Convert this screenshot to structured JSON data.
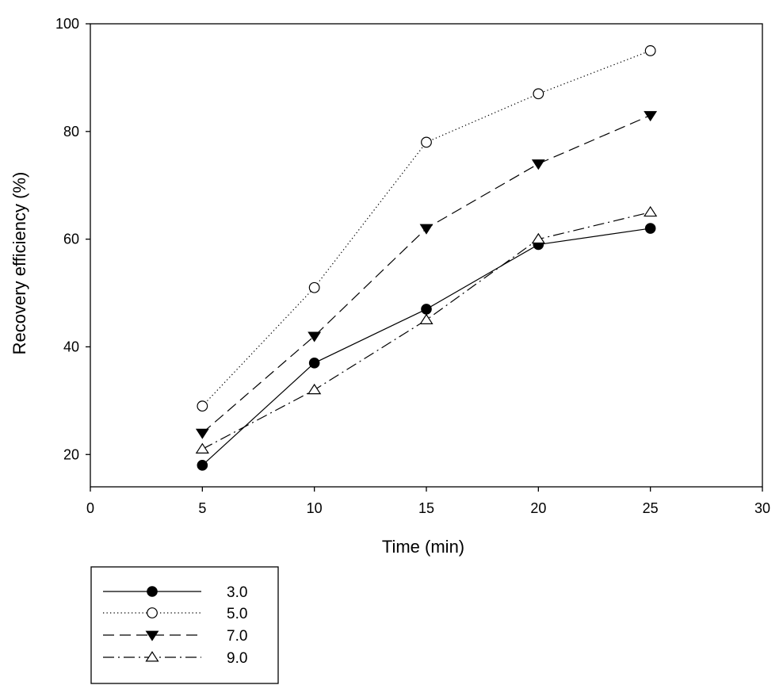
{
  "chart_data": {
    "type": "line",
    "title": "",
    "xlabel": "Time (min)",
    "ylabel": "Recovery efficiency (%)",
    "xlim": [
      0,
      30
    ],
    "ylim": [
      14,
      100
    ],
    "xticks": [
      0,
      5,
      10,
      15,
      20,
      25,
      30
    ],
    "yticks": [
      20,
      40,
      60,
      80,
      100
    ],
    "x_tick_labels": [
      "0",
      "5",
      "10",
      "15",
      "20",
      "25",
      "30"
    ],
    "y_tick_labels": [
      "20",
      "40",
      "60",
      "80",
      "100"
    ],
    "grid": false,
    "legend_position": "below-left",
    "x": [
      5,
      10,
      15,
      20,
      25
    ],
    "series": [
      {
        "name": "3.0",
        "values": [
          18,
          37,
          47,
          59,
          62
        ],
        "marker": "filled-circle",
        "line": "solid"
      },
      {
        "name": "5.0",
        "values": [
          29,
          51,
          78,
          87,
          95
        ],
        "marker": "open-circle",
        "line": "dotted"
      },
      {
        "name": "7.0",
        "values": [
          24,
          42,
          62,
          74,
          83
        ],
        "marker": "filled-triangle-down",
        "line": "dashed"
      },
      {
        "name": "9.0",
        "values": [
          21,
          32,
          45,
          60,
          65
        ],
        "marker": "open-triangle-up",
        "line": "dash-dot"
      }
    ],
    "colors": {
      "line": "#000000",
      "background": "#ffffff"
    }
  }
}
